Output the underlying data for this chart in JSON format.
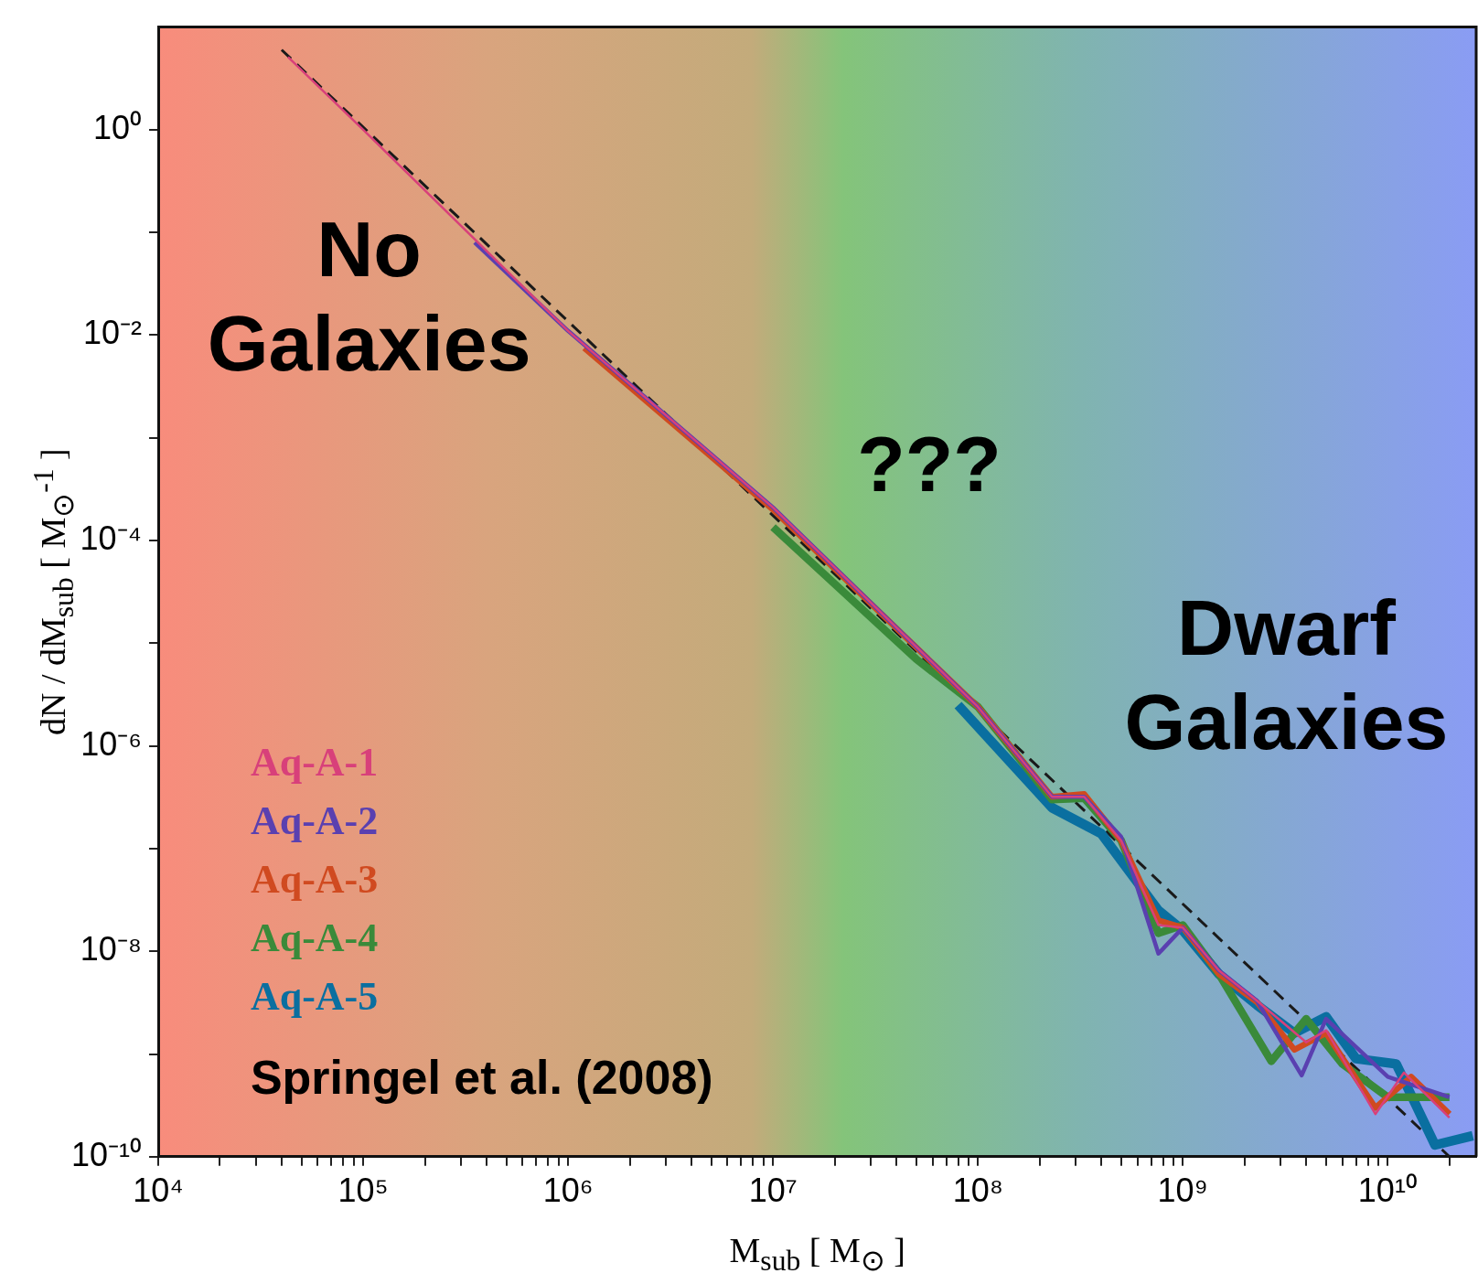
{
  "chart_data": {
    "type": "line",
    "xlabel": "M$_{sub}$ [ M$_{⊙}$ ]",
    "ylabel": "dN / dM$_{sub}$ [ M$_{⊙}$$^{-1}$ ]",
    "log": "xy",
    "grid": false,
    "legend": "bottom left",
    "xlim": [
      10000,
      27000000000
    ],
    "ylim": [
      1e-10,
      10
    ],
    "xticks": [
      {
        "value": 10000,
        "label": "10⁴"
      },
      {
        "value": 20000,
        "label": null
      },
      {
        "value": 30000,
        "label": null
      },
      {
        "value": 40000,
        "label": null
      },
      {
        "value": 50000,
        "label": null
      },
      {
        "value": 60000,
        "label": null
      },
      {
        "value": 70000,
        "label": null
      },
      {
        "value": 80000,
        "label": null
      },
      {
        "value": 90000,
        "label": null
      },
      {
        "value": 100000,
        "label": "10⁵"
      },
      {
        "value": 200000,
        "label": null
      },
      {
        "value": 300000,
        "label": null
      },
      {
        "value": 400000,
        "label": null
      },
      {
        "value": 500000,
        "label": null
      },
      {
        "value": 600000,
        "label": null
      },
      {
        "value": 700000,
        "label": null
      },
      {
        "value": 800000,
        "label": null
      },
      {
        "value": 900000,
        "label": null
      },
      {
        "value": 1000000,
        "label": "10⁶"
      },
      {
        "value": 2000000,
        "label": null
      },
      {
        "value": 3000000,
        "label": null
      },
      {
        "value": 4000000,
        "label": null
      },
      {
        "value": 5000000,
        "label": null
      },
      {
        "value": 6000000,
        "label": null
      },
      {
        "value": 7000000,
        "label": null
      },
      {
        "value": 8000000,
        "label": null
      },
      {
        "value": 9000000,
        "label": null
      },
      {
        "value": 10000000,
        "label": "10⁷"
      },
      {
        "value": 20000000,
        "label": null
      },
      {
        "value": 30000000,
        "label": null
      },
      {
        "value": 40000000,
        "label": null
      },
      {
        "value": 50000000,
        "label": null
      },
      {
        "value": 60000000,
        "label": null
      },
      {
        "value": 70000000,
        "label": null
      },
      {
        "value": 80000000,
        "label": null
      },
      {
        "value": 90000000,
        "label": null
      },
      {
        "value": 100000000,
        "label": "10⁸"
      },
      {
        "value": 200000000,
        "label": null
      },
      {
        "value": 300000000,
        "label": null
      },
      {
        "value": 400000000,
        "label": null
      },
      {
        "value": 500000000,
        "label": null
      },
      {
        "value": 600000000,
        "label": null
      },
      {
        "value": 700000000,
        "label": null
      },
      {
        "value": 800000000,
        "label": null
      },
      {
        "value": 900000000,
        "label": null
      },
      {
        "value": 1000000000,
        "label": "10⁹"
      },
      {
        "value": 2000000000,
        "label": null
      },
      {
        "value": 3000000000,
        "label": null
      },
      {
        "value": 4000000000,
        "label": null
      },
      {
        "value": 5000000000,
        "label": null
      },
      {
        "value": 6000000000,
        "label": null
      },
      {
        "value": 7000000000,
        "label": null
      },
      {
        "value": 8000000000,
        "label": null
      },
      {
        "value": 9000000000,
        "label": null
      },
      {
        "value": 10000000000,
        "label": "10¹⁰"
      },
      {
        "value": 20000000000,
        "label": null
      }
    ],
    "yticks": [
      {
        "value": 1e-10,
        "label": "10⁻¹⁰"
      },
      {
        "value": 1e-09,
        "label": null
      },
      {
        "value": 1e-08,
        "label": "10⁻⁸"
      },
      {
        "value": 1e-07,
        "label": null
      },
      {
        "value": 1e-06,
        "label": "10⁻⁶"
      },
      {
        "value": 1e-05,
        "label": null
      },
      {
        "value": 0.0001,
        "label": "10⁻⁴"
      },
      {
        "value": 0.001,
        "label": null
      },
      {
        "value": 0.01,
        "label": "10⁻²"
      },
      {
        "value": 0.1,
        "label": null
      },
      {
        "value": 1,
        "label": "10⁰"
      }
    ],
    "series": [
      {
        "name": "Aq-A-1",
        "color": "#d8407a",
        "x": [
          43000,
          100000,
          1000000,
          10000000,
          100000000,
          230000000,
          330000000,
          500000000,
          760000000,
          1000000000,
          1500000000,
          2300000000,
          4000000000,
          5000000000,
          8700000000,
          12000000000,
          20000000000
        ],
        "values": [
          5.1,
          1.0,
          0.011,
          0.00021,
          2.4e-06,
          3.2e-07,
          3.2e-07,
          1.2e-07,
          1.8e-08,
          1.7e-08,
          6.5e-09,
          3.3e-09,
          1.3e-09,
          1.7e-09,
          2.6e-10,
          6.6e-10,
          2.4e-10
        ]
      },
      {
        "name": "Aq-A-2",
        "color": "#5a40b0",
        "x": [
          350000,
          1000000,
          10000000,
          100000000,
          230000000,
          330000000,
          500000000,
          760000000,
          1000000000,
          1500000000,
          2300000000,
          3800000000,
          5000000000,
          10000000000,
          20000000000
        ],
        "values": [
          0.08,
          0.011,
          0.00021,
          2.4e-06,
          3.2e-07,
          3.2e-07,
          1.3e-07,
          9.5e-09,
          1.7e-08,
          6.5e-09,
          3.3e-09,
          6.2e-10,
          2.2e-09,
          6e-10,
          3.8e-10
        ]
      },
      {
        "name": "Aq-A-3",
        "color": "#d04a20",
        "x": [
          1200000,
          10000000,
          100000000,
          230000000,
          330000000,
          500000000,
          760000000,
          1000000000,
          1500000000,
          2300000000,
          3500000000,
          5000000000,
          8700000000,
          13000000000,
          20000000000
        ],
        "values": [
          0.0075,
          0.0002,
          2.4e-06,
          3.2e-07,
          3.4e-07,
          1.2e-07,
          2e-08,
          1.7e-08,
          6e-09,
          3.2e-09,
          1.1e-09,
          1.6e-09,
          3e-10,
          6e-10,
          2.6e-10
        ]
      },
      {
        "name": "Aq-A-4",
        "color": "#3a8a3a",
        "x": [
          10000000,
          50000000,
          100000000,
          230000000,
          330000000,
          500000000,
          760000000,
          1000000000,
          1500000000,
          2700000000,
          4000000000,
          6000000000,
          10000000000,
          20000000000
        ],
        "values": [
          0.000135,
          7e-06,
          2.4e-06,
          3e-07,
          3.1e-07,
          1.2e-07,
          1.5e-08,
          1.8e-08,
          6e-09,
          8.5e-10,
          2.2e-09,
          8e-10,
          3.8e-10,
          3.8e-10
        ]
      },
      {
        "name": "Aq-A-5",
        "color": "#0a6fa0",
        "x": [
          80000000,
          230000000,
          400000000,
          760000000,
          1000000000,
          1500000000,
          2300000000,
          3500000000,
          5000000000,
          7000000000,
          11000000000,
          17000000000,
          26000000000
        ],
        "values": [
          2.5e-06,
          2.5e-07,
          1.4e-07,
          2.5e-08,
          1.6e-08,
          6e-09,
          3e-09,
          1.6e-09,
          2.3e-09,
          9e-10,
          8e-10,
          1.3e-10,
          1.6e-10
        ]
      },
      {
        "type": "line",
        "color": "#1a1a1a",
        "line_style": "dashed",
        "x": [
          40000,
          20000000000
        ],
        "values": [
          6,
          1e-10
        ]
      }
    ],
    "annotations": [
      "No Galaxies",
      "???",
      "Dwarf Galaxies",
      "Springel et al. (2008)"
    ]
  }
}
